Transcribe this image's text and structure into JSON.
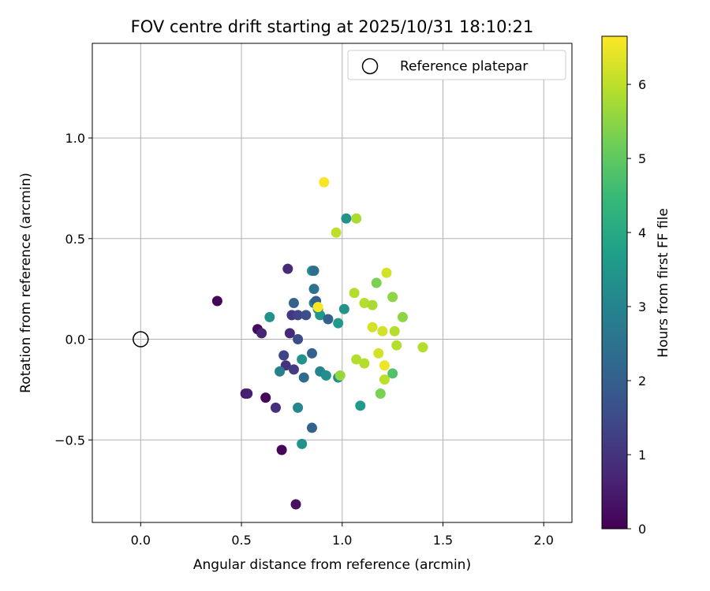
{
  "chart_data": {
    "type": "scatter",
    "title": "FOV centre drift starting at 2025/10/31 18:10:21",
    "xlabel": "Angular distance from reference (arcmin)",
    "ylabel": "Rotation from reference (arcmin)",
    "xlim": [
      -0.24,
      2.14
    ],
    "ylim": [
      -0.91,
      1.47
    ],
    "xticks": [
      0.0,
      0.5,
      1.0,
      1.5,
      2.0
    ],
    "xtick_labels": [
      "0.0",
      "0.5",
      "1.0",
      "1.5",
      "2.0"
    ],
    "yticks": [
      -0.5,
      0.0,
      0.5,
      1.0
    ],
    "ytick_labels": [
      "−0.5",
      "0.0",
      "0.5",
      "1.0"
    ],
    "grid": true,
    "reference_point": {
      "x": 0.0,
      "y": 0.0,
      "label": "Reference platepar",
      "marker": "open-circle"
    },
    "legend_position": "upper right",
    "colorbar": {
      "label": "Hours from first FF file",
      "colormap": "viridis",
      "range": [
        0,
        6.65
      ],
      "ticks": [
        0,
        1,
        2,
        3,
        4,
        5,
        6
      ],
      "tick_labels": [
        "0",
        "1",
        "2",
        "3",
        "4",
        "5",
        "6"
      ]
    },
    "points": [
      {
        "x": 0.38,
        "y": 0.19,
        "h": 0.1
      },
      {
        "x": 0.58,
        "y": 0.05,
        "h": 0.2
      },
      {
        "x": 0.6,
        "y": 0.03,
        "h": 0.7
      },
      {
        "x": 0.52,
        "y": -0.27,
        "h": 0.5
      },
      {
        "x": 0.53,
        "y": -0.27,
        "h": 0.6
      },
      {
        "x": 0.62,
        "y": -0.29,
        "h": 0.1
      },
      {
        "x": 0.67,
        "y": -0.34,
        "h": 0.9
      },
      {
        "x": 0.7,
        "y": -0.55,
        "h": 0.1
      },
      {
        "x": 0.77,
        "y": -0.82,
        "h": 0.3
      },
      {
        "x": 0.73,
        "y": 0.35,
        "h": 0.8
      },
      {
        "x": 0.74,
        "y": 0.03,
        "h": 0.8
      },
      {
        "x": 0.75,
        "y": 0.12,
        "h": 1.1
      },
      {
        "x": 0.71,
        "y": -0.08,
        "h": 1.4
      },
      {
        "x": 0.72,
        "y": -0.13,
        "h": 1.0
      },
      {
        "x": 0.76,
        "y": -0.15,
        "h": 1.2
      },
      {
        "x": 0.78,
        "y": 0.0,
        "h": 1.5
      },
      {
        "x": 0.78,
        "y": 0.12,
        "h": 1.4
      },
      {
        "x": 0.76,
        "y": 0.18,
        "h": 2.1
      },
      {
        "x": 0.82,
        "y": 0.12,
        "h": 1.6
      },
      {
        "x": 0.64,
        "y": 0.11,
        "h": 3.4
      },
      {
        "x": 0.69,
        "y": -0.16,
        "h": 2.9
      },
      {
        "x": 0.78,
        "y": -0.34,
        "h": 3.1
      },
      {
        "x": 0.8,
        "y": -0.52,
        "h": 3.4
      },
      {
        "x": 0.81,
        "y": -0.19,
        "h": 2.3
      },
      {
        "x": 0.8,
        "y": -0.1,
        "h": 3.4
      },
      {
        "x": 0.85,
        "y": -0.07,
        "h": 2.0
      },
      {
        "x": 0.85,
        "y": -0.44,
        "h": 2.1
      },
      {
        "x": 0.85,
        "y": 0.34,
        "h": 3.5
      },
      {
        "x": 0.86,
        "y": 0.34,
        "h": 2.4
      },
      {
        "x": 0.86,
        "y": 0.25,
        "h": 2.5
      },
      {
        "x": 0.86,
        "y": 0.18,
        "h": 3.0
      },
      {
        "x": 0.87,
        "y": 0.19,
        "h": 2.0
      },
      {
        "x": 0.88,
        "y": 0.15,
        "h": 3.0
      },
      {
        "x": 0.89,
        "y": 0.12,
        "h": 3.5
      },
      {
        "x": 0.93,
        "y": 0.1,
        "h": 2.0
      },
      {
        "x": 0.88,
        "y": 0.16,
        "h": 6.6
      },
      {
        "x": 0.89,
        "y": -0.16,
        "h": 3.0
      },
      {
        "x": 0.92,
        "y": -0.18,
        "h": 3.3
      },
      {
        "x": 0.98,
        "y": -0.19,
        "h": 3.3
      },
      {
        "x": 0.98,
        "y": 0.08,
        "h": 3.6
      },
      {
        "x": 1.01,
        "y": 0.15,
        "h": 3.4
      },
      {
        "x": 1.02,
        "y": 0.6,
        "h": 3.4
      },
      {
        "x": 1.07,
        "y": 0.6,
        "h": 5.8
      },
      {
        "x": 0.91,
        "y": 0.78,
        "h": 6.6
      },
      {
        "x": 0.97,
        "y": 0.53,
        "h": 6.0
      },
      {
        "x": 0.99,
        "y": -0.18,
        "h": 5.6
      },
      {
        "x": 1.06,
        "y": 0.23,
        "h": 5.9
      },
      {
        "x": 1.07,
        "y": -0.1,
        "h": 5.9
      },
      {
        "x": 1.09,
        "y": -0.33,
        "h": 3.6
      },
      {
        "x": 1.11,
        "y": 0.18,
        "h": 5.9
      },
      {
        "x": 1.11,
        "y": -0.12,
        "h": 5.9
      },
      {
        "x": 1.15,
        "y": 0.17,
        "h": 5.8
      },
      {
        "x": 1.15,
        "y": 0.06,
        "h": 6.2
      },
      {
        "x": 1.17,
        "y": 0.28,
        "h": 5.3
      },
      {
        "x": 1.18,
        "y": -0.07,
        "h": 6.2
      },
      {
        "x": 1.19,
        "y": -0.27,
        "h": 5.3
      },
      {
        "x": 1.2,
        "y": 0.04,
        "h": 6.2
      },
      {
        "x": 1.21,
        "y": -0.13,
        "h": 6.5
      },
      {
        "x": 1.21,
        "y": -0.2,
        "h": 6.0
      },
      {
        "x": 1.22,
        "y": 0.33,
        "h": 6.2
      },
      {
        "x": 1.25,
        "y": 0.21,
        "h": 5.5
      },
      {
        "x": 1.25,
        "y": -0.17,
        "h": 4.8
      },
      {
        "x": 1.26,
        "y": 0.04,
        "h": 5.9
      },
      {
        "x": 1.27,
        "y": -0.03,
        "h": 5.9
      },
      {
        "x": 1.3,
        "y": 0.11,
        "h": 5.5
      },
      {
        "x": 1.4,
        "y": -0.04,
        "h": 5.9
      }
    ]
  }
}
